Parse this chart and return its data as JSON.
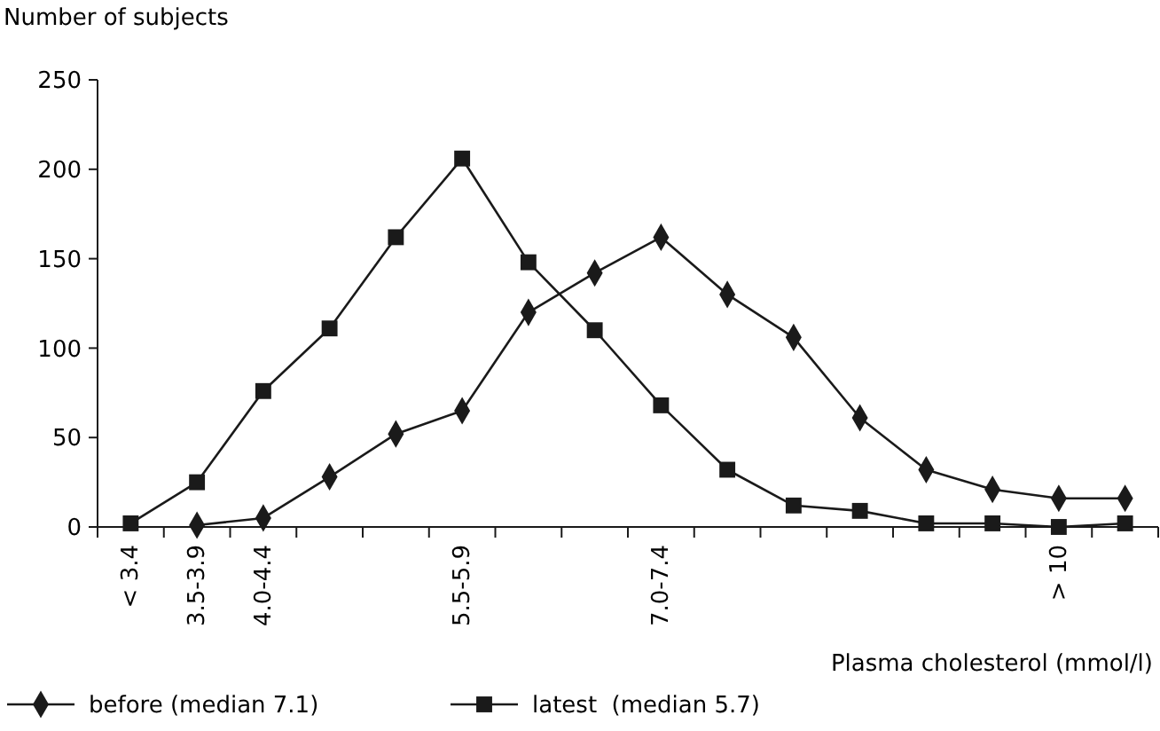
{
  "chart_data": {
    "type": "line",
    "ylabel": "Number of subjects",
    "xlabel": "Plasma cholesterol (mmol/l)",
    "categories": [
      "< 3.4",
      "3.5-3.9",
      "4.0-4.4",
      null,
      null,
      "5.5-5.9",
      null,
      null,
      "7.0-7.4",
      null,
      null,
      null,
      null,
      null,
      "> 10",
      null
    ],
    "series": [
      {
        "name": "before (median 7.1)",
        "color": "#1a1a1a",
        "marker": "diamond",
        "values": [
          null,
          1,
          5,
          28,
          52,
          65,
          120,
          142,
          162,
          130,
          106,
          61,
          32,
          21,
          16,
          16
        ]
      },
      {
        "name": "latest  (median 5.7)",
        "color": "#1a1a1a",
        "marker": "square",
        "values": [
          2,
          25,
          76,
          111,
          162,
          206,
          148,
          110,
          68,
          32,
          12,
          9,
          2,
          2,
          0,
          2
        ]
      }
    ],
    "ylim": [
      0,
      250
    ],
    "yticks": [
      0,
      50,
      100,
      150,
      200,
      250
    ],
    "grid": false,
    "legend": "bottom left",
    "line_style": "solid"
  }
}
